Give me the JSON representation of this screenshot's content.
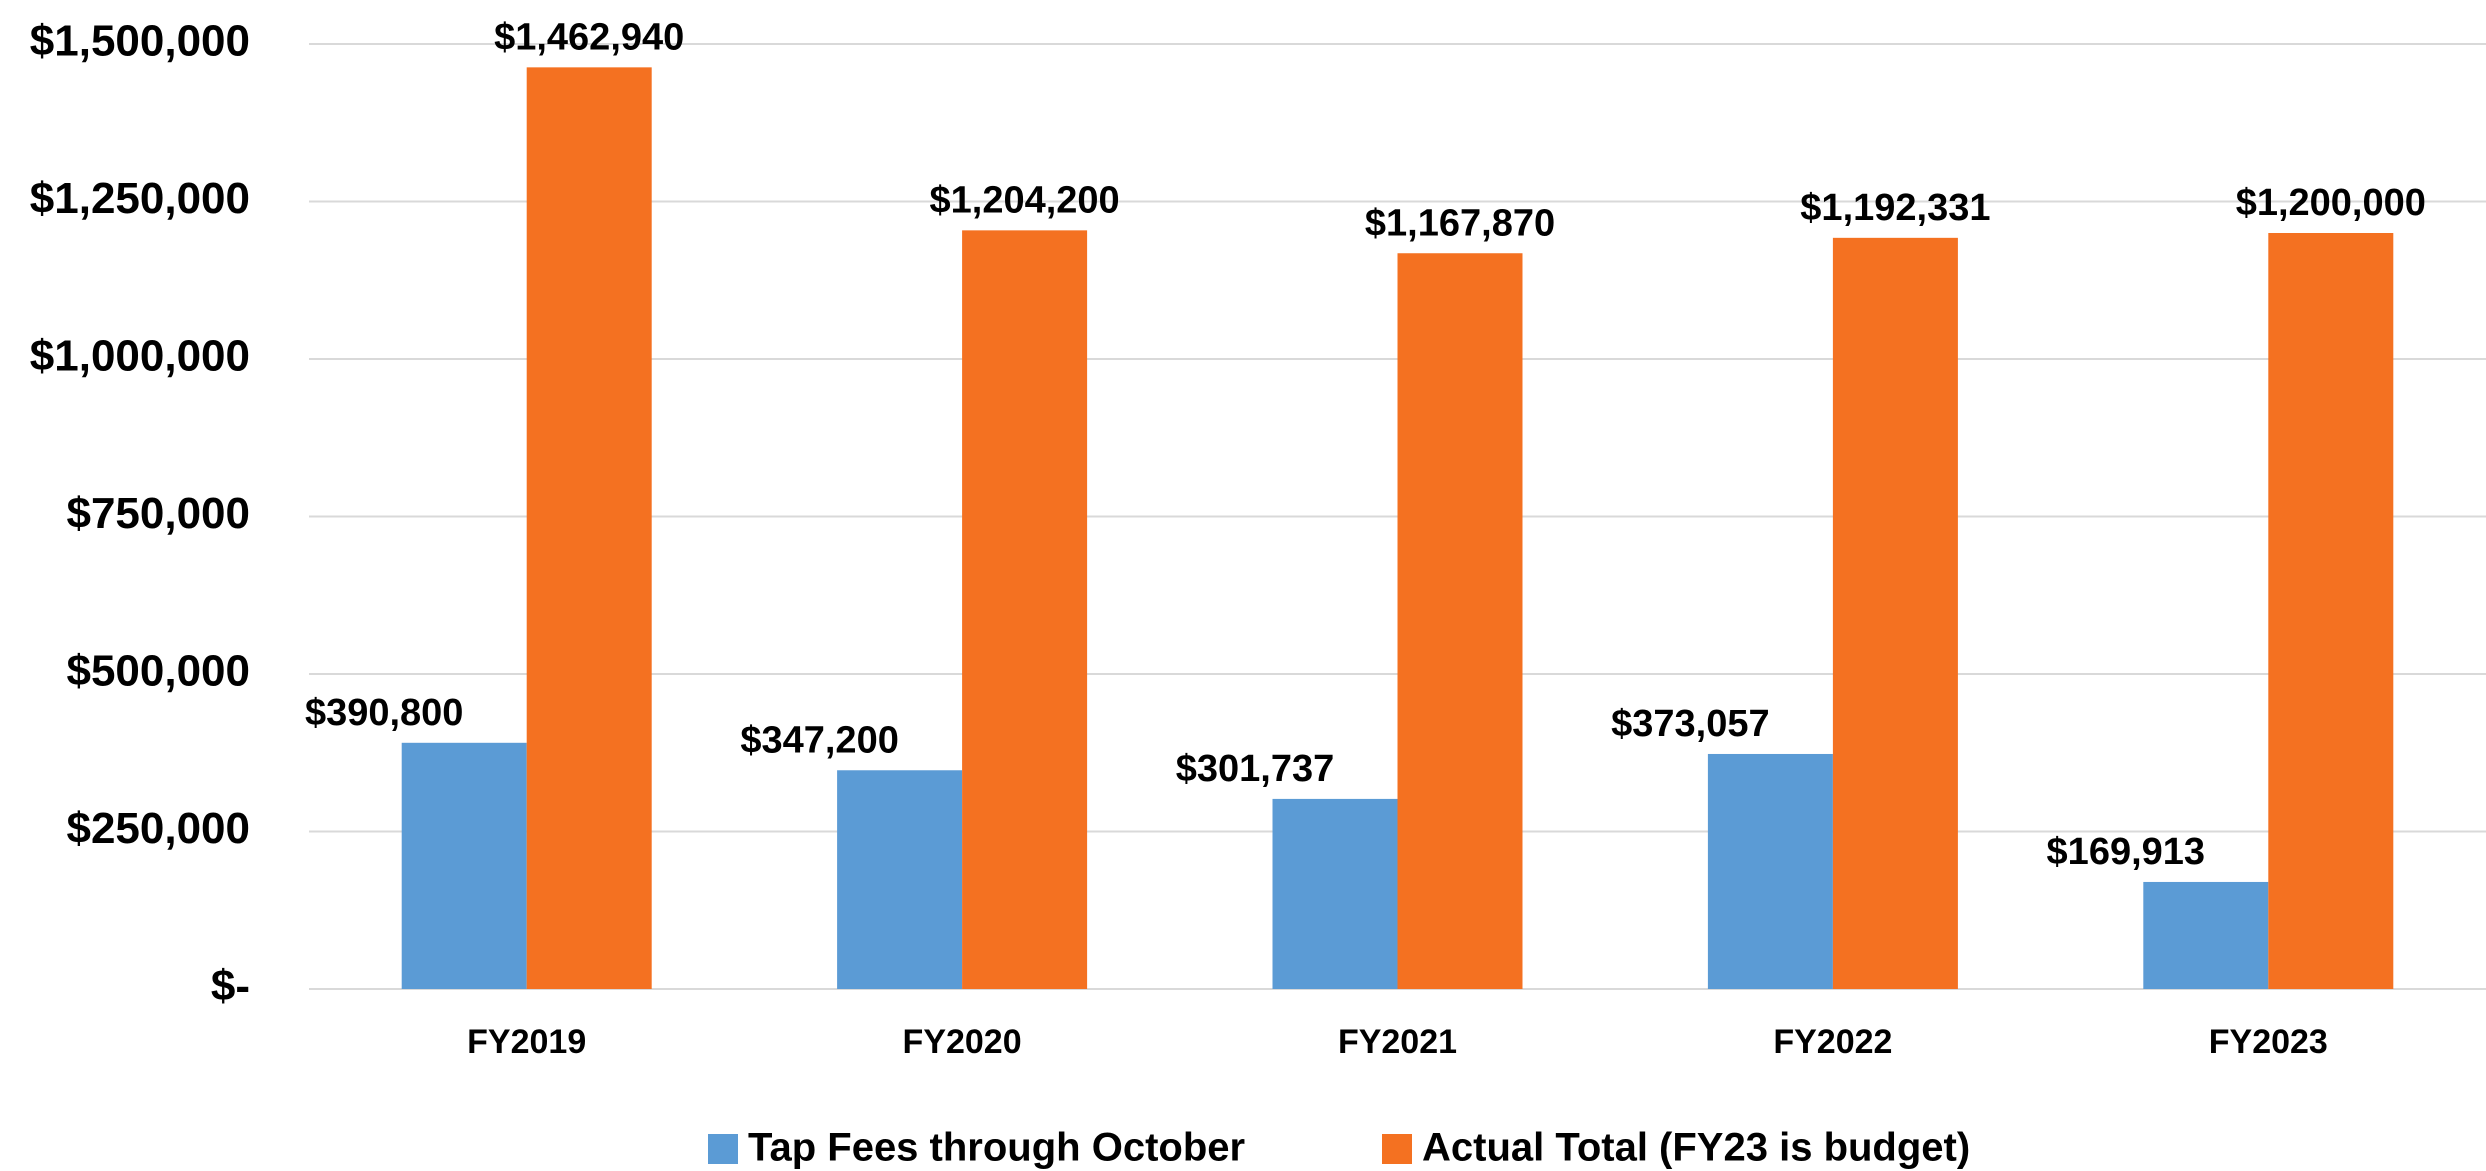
{
  "chart_data": {
    "type": "bar",
    "categories": [
      "FY2019",
      "FY2020",
      "FY2021",
      "FY2022",
      "FY2023"
    ],
    "series": [
      {
        "name": "Tap Fees through October",
        "color": "#5b9bd5",
        "values": [
          390800,
          347200,
          301737,
          373057,
          169913
        ],
        "value_labels": [
          "$390,800",
          "$347,200",
          "$301,737",
          "$373,057",
          "$169,913"
        ]
      },
      {
        "name": "Actual Total (FY23 is budget)",
        "color": "#f47121",
        "values": [
          1462940,
          1204200,
          1167870,
          1192331,
          1200000
        ],
        "value_labels": [
          "$1,462,940",
          "$1,204,200",
          "$1,167,870",
          "$1,192,331",
          "$1,200,000"
        ]
      }
    ],
    "ylim": [
      0,
      1500000
    ],
    "yticks": [
      {
        "value": 0,
        "label": "$-"
      },
      {
        "value": 250000,
        "label": "$250,000"
      },
      {
        "value": 500000,
        "label": "$500,000"
      },
      {
        "value": 750000,
        "label": "$750,000"
      },
      {
        "value": 1000000,
        "label": "$1,000,000"
      },
      {
        "value": 1250000,
        "label": "$1,250,000"
      },
      {
        "value": 1500000,
        "label": "$1,500,000"
      }
    ],
    "grid": true,
    "legend": "bottom"
  }
}
